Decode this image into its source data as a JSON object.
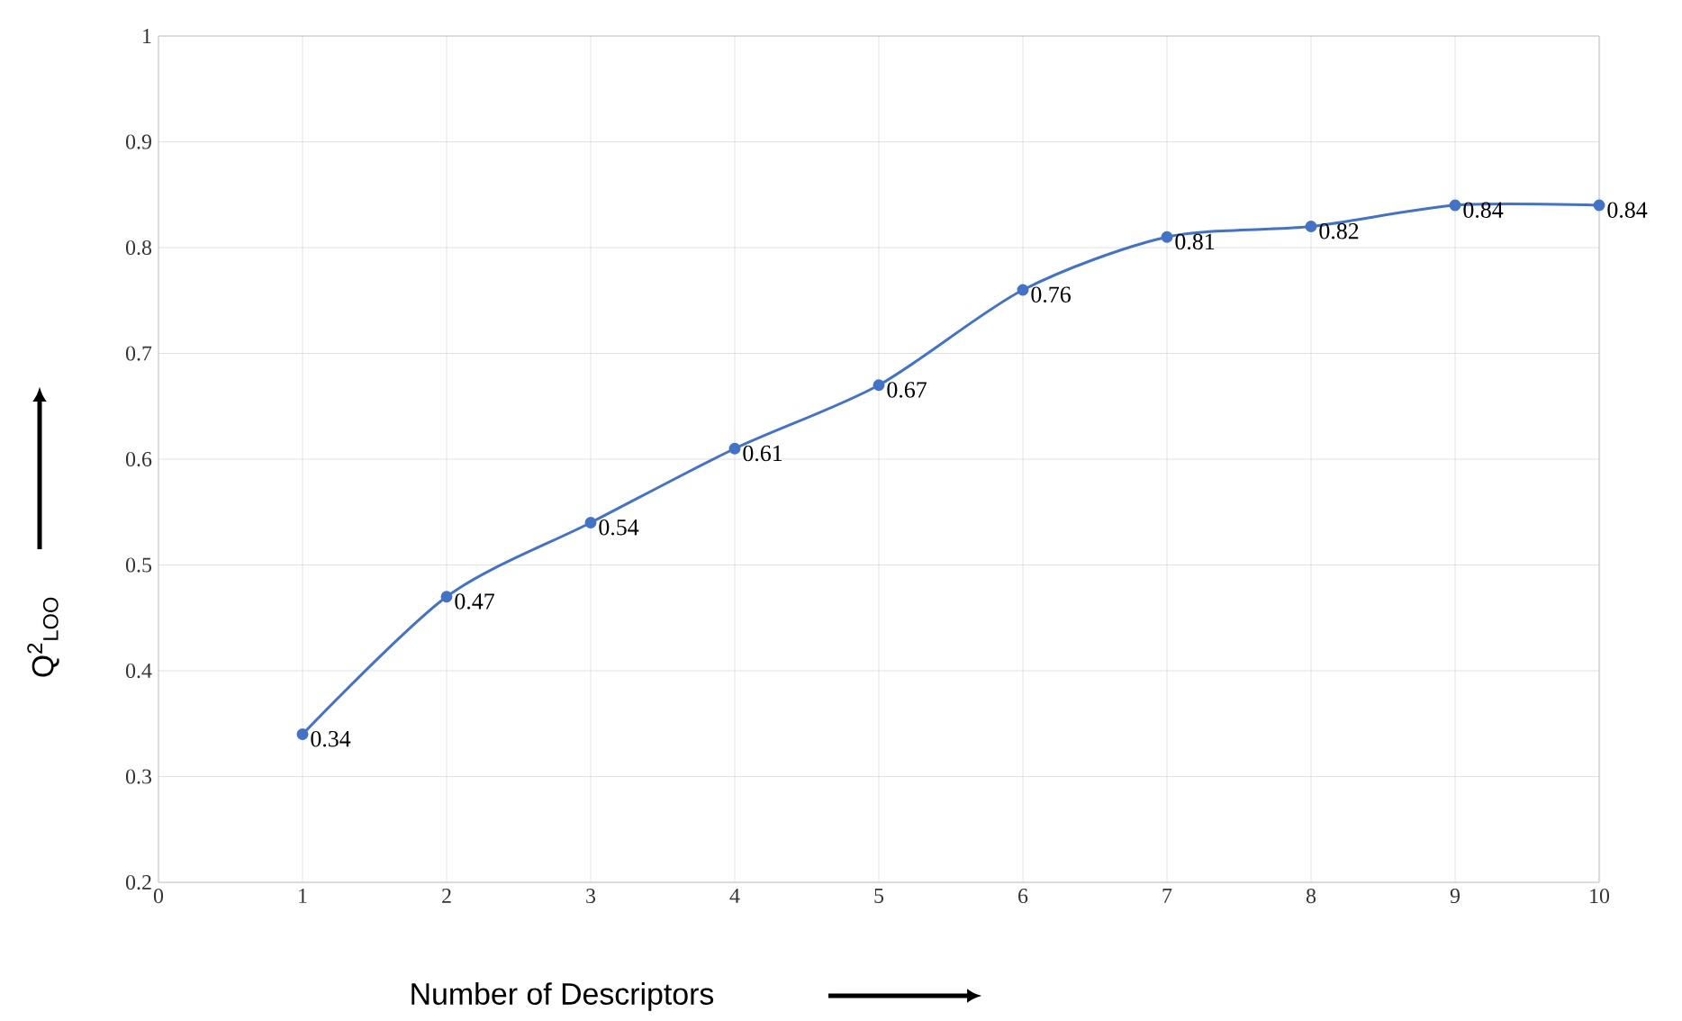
{
  "chart_data": {
    "type": "line",
    "xlabel": "Number of Descriptors",
    "ylabel": "Q$^{2}$$_{LOO}$",
    "x": [
      1,
      2,
      3,
      4,
      5,
      6,
      7,
      8,
      9,
      10
    ],
    "series": [
      {
        "color": "#4472c4",
        "values": [
          0.34,
          0.47,
          0.54,
          0.61,
          0.67,
          0.76,
          0.81,
          0.82,
          0.84,
          0.84
        ]
      }
    ],
    "xlim": [
      0,
      10
    ],
    "ylim": [
      0.2,
      1
    ],
    "xticks": [
      0,
      1,
      2,
      3,
      4,
      5,
      6,
      7,
      8,
      9,
      10
    ],
    "yticks": [
      0.2,
      0.3,
      0.4,
      0.5,
      0.6,
      0.7,
      0.8,
      0.9,
      1
    ],
    "grid": true,
    "marker": "circle",
    "line_style": "solid",
    "data_labels": true
  }
}
